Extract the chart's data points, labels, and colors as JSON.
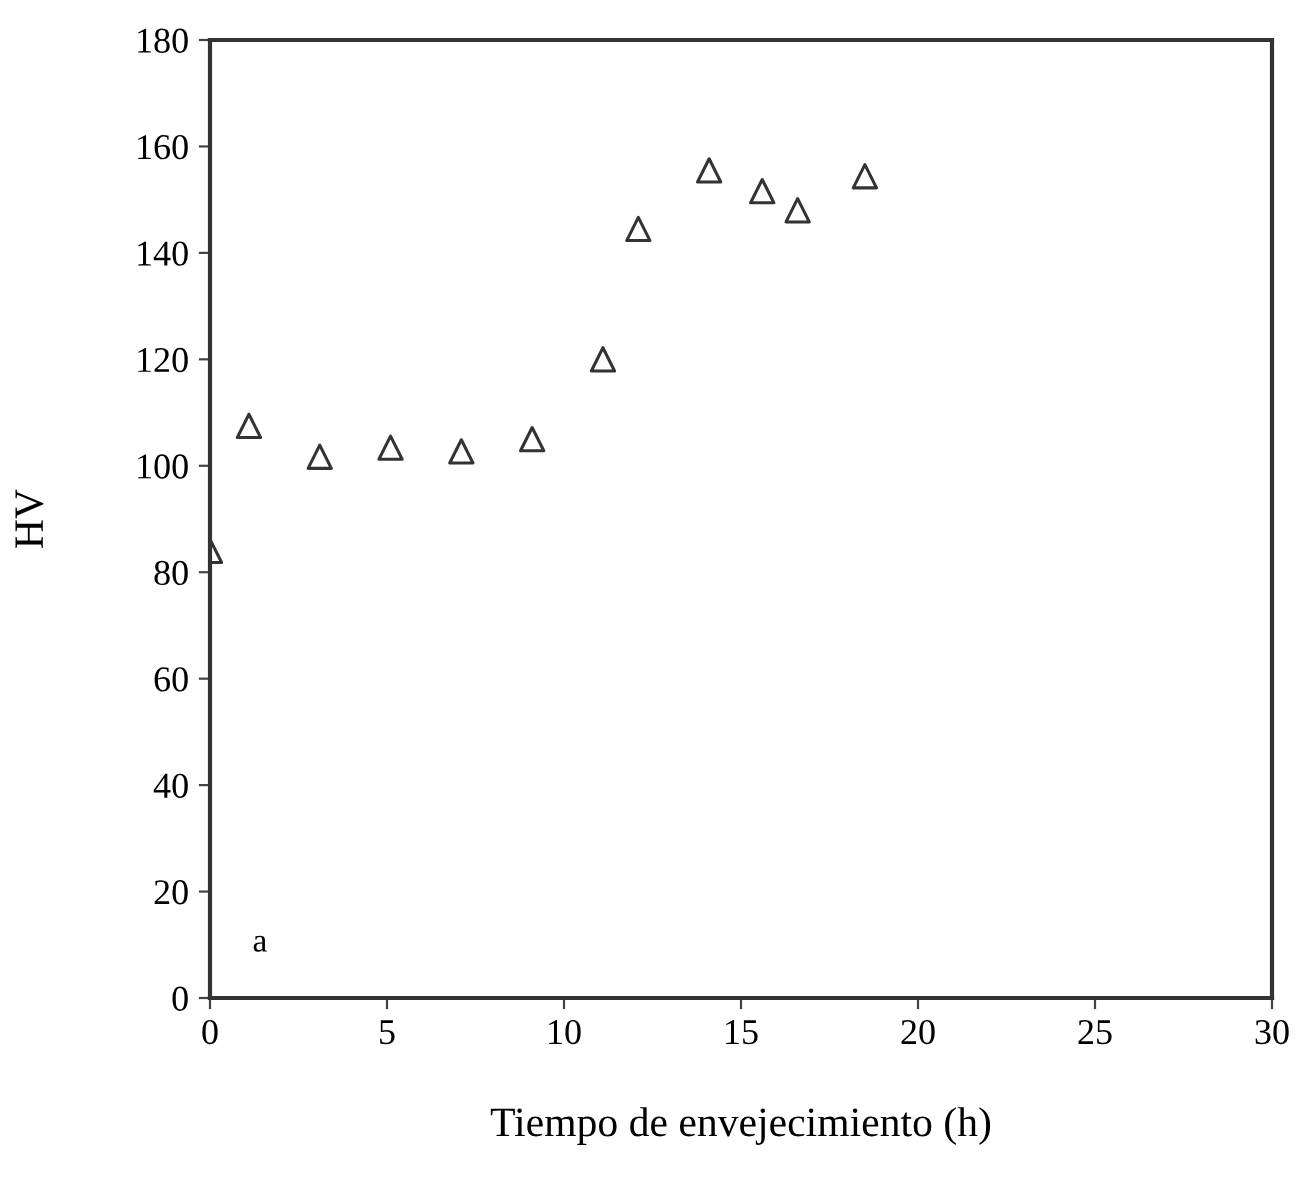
{
  "chart_data": {
    "type": "scatter",
    "xlabel": "Tiempo de envejecimiento (h)",
    "ylabel": "HV",
    "x": [
      0,
      1.1,
      3.1,
      5.1,
      7.1,
      9.1,
      11.1,
      12.1,
      14.1,
      15.6,
      16.6,
      18.5
    ],
    "values": [
      84,
      107.5,
      101.7,
      103.4,
      102.7,
      105,
      120,
      144.5,
      155.5,
      151.6,
      148,
      154.4
    ],
    "color": "#333333",
    "marker": "triangle",
    "xlim": [
      0,
      30
    ],
    "xticks": [
      0,
      5,
      10,
      15,
      20,
      25,
      30
    ],
    "ylim": [
      0,
      180
    ],
    "yticks": [
      0,
      20,
      40,
      60,
      80,
      100,
      120,
      140,
      160,
      180
    ],
    "annotations": [
      "a"
    ],
    "grid": false,
    "legend": false
  }
}
